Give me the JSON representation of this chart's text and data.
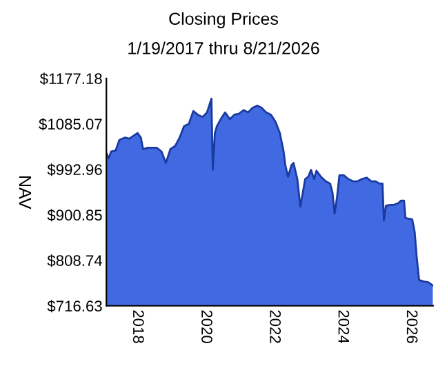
{
  "chart_data": {
    "type": "area",
    "title": "Closing Prices",
    "subtitle": "1/19/2017 thru 8/21/2026",
    "ylabel": "NAV",
    "x": [
      2017.11,
      2017.17,
      2017.24,
      2017.37,
      2017.48,
      2017.64,
      2017.77,
      2017.91,
      2018.01,
      2018.11,
      2018.17,
      2018.31,
      2018.44,
      2018.57,
      2018.71,
      2018.84,
      2018.97,
      2019.11,
      2019.24,
      2019.37,
      2019.51,
      2019.64,
      2019.77,
      2019.91,
      2020.04,
      2020.17,
      2020.21,
      2020.27,
      2020.33,
      2020.44,
      2020.57,
      2020.71,
      2020.84,
      2020.97,
      2021.11,
      2021.24,
      2021.37,
      2021.51,
      2021.64,
      2021.77,
      2021.91,
      2022.04,
      2022.17,
      2022.28,
      2022.33,
      2022.41,
      2022.51,
      2022.57,
      2022.68,
      2022.77,
      2022.84,
      2022.91,
      2023.0,
      2023.08,
      2023.17,
      2023.24,
      2023.37,
      2023.51,
      2023.64,
      2023.71,
      2023.77,
      2023.84,
      2023.91,
      2024.04,
      2024.17,
      2024.31,
      2024.44,
      2024.57,
      2024.71,
      2024.84,
      2024.97,
      2025.08,
      2025.17,
      2025.21,
      2025.27,
      2025.37,
      2025.51,
      2025.64,
      2025.71,
      2025.8,
      2025.84,
      2026.04,
      2026.11,
      2026.17,
      2026.24,
      2026.37,
      2026.51,
      2026.64
    ],
    "series": [
      {
        "color": "#4169e1",
        "values": [
          1024.6,
          1015.3,
          1029.2,
          1031.1,
          1052.5,
          1057.2,
          1055.3,
          1061.8,
          1066.5,
          1057.2,
          1033.9,
          1036.7,
          1036.7,
          1036.7,
          1029.2,
          1006.0,
          1033.9,
          1040.4,
          1057.2,
          1080.4,
          1085.1,
          1111.1,
          1103.7,
          1099.0,
          1108.3,
          1136.2,
          992.0,
          1066.5,
          1080.4,
          1094.4,
          1108.3,
          1094.4,
          1103.7,
          1105.5,
          1113.0,
          1108.3,
          1117.6,
          1122.2,
          1117.6,
          1108.3,
          1103.7,
          1089.7,
          1066.5,
          1029.2,
          1001.3,
          978.1,
          1001.3,
          1006.0,
          973.4,
          917.6,
          945.5,
          973.4,
          978.1,
          992.0,
          973.4,
          990.2,
          978.1,
          968.8,
          964.1,
          945.5,
          903.6,
          936.2,
          980.9,
          980.9,
          973.4,
          968.8,
          968.8,
          973.4,
          976.2,
          968.8,
          968.8,
          964.1,
          964.1,
          889.7,
          919.4,
          920.4,
          921.3,
          925.0,
          929.7,
          929.7,
          894.3,
          891.5,
          866.4,
          815.3,
          768.7,
          765.9,
          764.1,
          757.6
        ]
      }
    ],
    "xlim": [
      2017.1,
      2026.65
    ],
    "xticks": [
      2018,
      2020,
      2022,
      2024,
      2026
    ],
    "ylim": [
      716.63,
      1177.18
    ],
    "yticks": [
      {
        "value": 716.63,
        "label": "$716.63"
      },
      {
        "value": 808.74,
        "label": "$808.74"
      },
      {
        "value": 900.85,
        "label": "$900.85"
      },
      {
        "value": 992.96,
        "label": "$992.96"
      },
      {
        "value": 1085.07,
        "label": "$1085.07"
      },
      {
        "value": 1177.18,
        "label": "$1177.18"
      }
    ],
    "grid": false,
    "legend": false
  }
}
